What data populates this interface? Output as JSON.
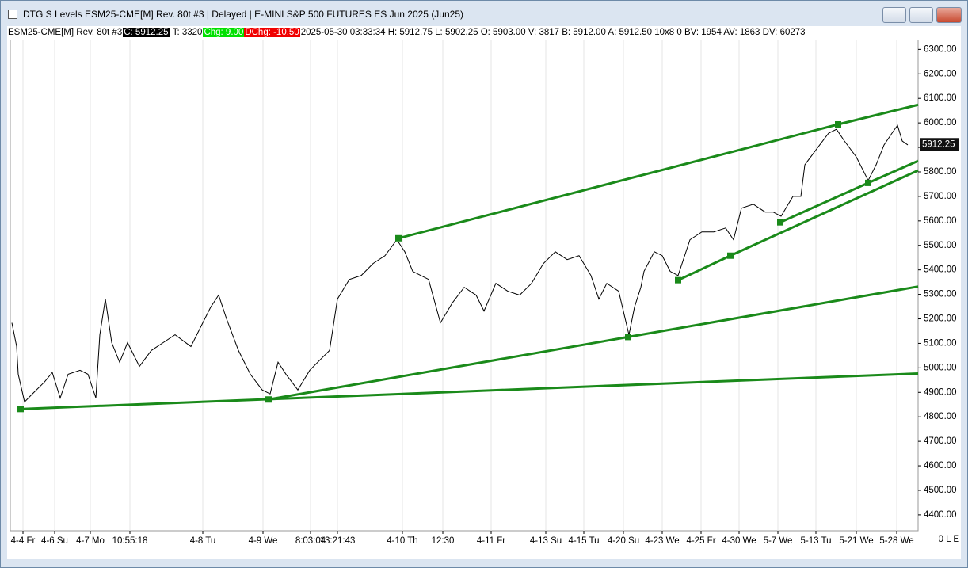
{
  "window": {
    "title": "DTG S Levels ESM25-CME[M]  Rev. 80t #3 | Delayed | E-MINI S&P 500 FUTURES ES Jun 2025 (Jun25)"
  },
  "info_bar": {
    "symbol": "ESM25-CME[M]  Rev. 80t #3",
    "close": "C: 5912.25",
    "ticks": "T: 3320",
    "change": "Chg: 9.00",
    "daily_change": "DChg: -10.50",
    "details": "2025-05-30 03:33:34 H: 5912.75 L: 5902.25 O: 5903.00 V: 3817 B: 5912.00 A: 5912.50 10x8 0 BV: 1954 AV: 1863 DV: 60273"
  },
  "status": "0 L E",
  "chart_data": {
    "type": "line",
    "xlim": [
      0,
      1146
    ],
    "ylim": [
      4335,
      6340
    ],
    "grid": true,
    "series": [
      {
        "color": "#000000",
        "x": [
          2,
          8,
          10,
          18,
          28,
          43,
          53,
          63,
          73,
          88,
          98,
          108,
          113,
          120,
          128,
          138,
          148,
          163,
          178,
          193,
          208,
          228,
          243,
          253,
          263,
          273,
          288,
          303,
          318,
          328,
          338,
          348,
          363,
          378,
          393,
          403,
          413,
          428,
          443,
          458,
          473,
          488,
          498,
          508,
          528,
          543,
          558,
          573,
          588,
          598,
          613,
          628,
          643,
          658,
          673,
          688,
          703,
          718,
          733,
          743,
          753,
          768,
          781,
          788,
          796,
          800,
          813,
          823,
          833,
          843,
          858,
          873,
          888,
          903,
          913,
          923,
          938,
          953,
          963,
          973,
          988,
          998,
          1003,
          1018,
          1033,
          1043,
          1053,
          1068,
          1083,
          1093,
          1103,
          1113,
          1120,
          1126,
          1133
        ],
        "values": [
          5184,
          5087,
          4974,
          4861,
          4894,
          4942,
          4981,
          4877,
          4974,
          4990,
          4974,
          4877,
          5135,
          5281,
          5103,
          5023,
          5103,
          5006,
          5071,
          5103,
          5135,
          5087,
          5184,
          5248,
          5297,
          5200,
          5071,
          4974,
          4910,
          4894,
          5023,
          4974,
          4910,
          4990,
          5039,
          5071,
          5281,
          5361,
          5377,
          5426,
          5458,
          5523,
          5474,
          5394,
          5361,
          5184,
          5265,
          5329,
          5297,
          5232,
          5345,
          5313,
          5297,
          5345,
          5426,
          5474,
          5442,
          5458,
          5377,
          5281,
          5345,
          5313,
          5135,
          5248,
          5329,
          5394,
          5474,
          5458,
          5394,
          5377,
          5523,
          5555,
          5555,
          5571,
          5523,
          5652,
          5668,
          5636,
          5636,
          5619,
          5700,
          5700,
          5829,
          5894,
          5958,
          5974,
          5926,
          5861,
          5765,
          5829,
          5910,
          5958,
          5990,
          5926,
          5910
        ]
      }
    ],
    "trendlines": [
      {
        "color": "#1a8a1a",
        "x": [
          13,
          1146
        ],
        "values": [
          4832,
          4977
        ]
      },
      {
        "color": "#1a8a1a",
        "x": [
          326,
          780,
          1146
        ],
        "values": [
          4871,
          5126,
          5332
        ]
      },
      {
        "color": "#1a8a1a",
        "x": [
          490,
          1045,
          1146
        ],
        "values": [
          5529,
          5994,
          6074
        ]
      },
      {
        "color": "#1a8a1a",
        "x": [
          843,
          909,
          1146
        ],
        "values": [
          5358,
          5458,
          5806
        ]
      },
      {
        "color": "#1a8a1a",
        "x": [
          972,
          1083,
          1146
        ],
        "values": [
          5594,
          5755,
          5845
        ]
      }
    ],
    "last_price": {
      "value": 5912.25,
      "label": "5912.25"
    },
    "yticks": [
      {
        "value": 4400,
        "label": "4400.00"
      },
      {
        "value": 4500,
        "label": "4500.00"
      },
      {
        "value": 4600,
        "label": "4600.00"
      },
      {
        "value": 4700,
        "label": "4700.00"
      },
      {
        "value": 4800,
        "label": "4800.00"
      },
      {
        "value": 4900,
        "label": "4900.00"
      },
      {
        "value": 5000,
        "label": "5000.00"
      },
      {
        "value": 5100,
        "label": "5100.00"
      },
      {
        "value": 5200,
        "label": "5200.00"
      },
      {
        "value": 5300,
        "label": "5300.00"
      },
      {
        "value": 5400,
        "label": "5400.00"
      },
      {
        "value": 5500,
        "label": "5500.00"
      },
      {
        "value": 5600,
        "label": "5600.00"
      },
      {
        "value": 5700,
        "label": "5700.00"
      },
      {
        "value": 5800,
        "label": "5800.00"
      },
      {
        "value": 5900,
        "label": "5900.00"
      },
      {
        "value": 6000,
        "label": "6000.00"
      },
      {
        "value": 6100,
        "label": "6100.00"
      },
      {
        "value": 6200,
        "label": "6200.00"
      },
      {
        "value": 6300,
        "label": "6300.00"
      }
    ],
    "xticks": [
      {
        "value": 16,
        "label": "4-4 Fr"
      },
      {
        "value": 56,
        "label": "4-6 Su"
      },
      {
        "value": 101,
        "label": "4-7 Mo"
      },
      {
        "value": 151,
        "label": "10:55:18"
      },
      {
        "value": 243,
        "label": "4-8 Tu"
      },
      {
        "value": 319,
        "label": "4-9 We"
      },
      {
        "value": 379,
        "label": "8:03:04"
      },
      {
        "value": 413,
        "label": "13:21:43"
      },
      {
        "value": 495,
        "label": "4-10 Th"
      },
      {
        "value": 546,
        "label": "12:30"
      },
      {
        "value": 607,
        "label": "4-11 Fr"
      },
      {
        "value": 676,
        "label": "4-13 Su"
      },
      {
        "value": 724,
        "label": "4-15 Tu"
      },
      {
        "value": 774,
        "label": "4-20 Su"
      },
      {
        "value": 823,
        "label": "4-23 We"
      },
      {
        "value": 872,
        "label": "4-25 Fr"
      },
      {
        "value": 920,
        "label": "4-30 We"
      },
      {
        "value": 969,
        "label": "5-7 We"
      },
      {
        "value": 1017,
        "label": "5-13 Tu"
      },
      {
        "value": 1068,
        "label": "5-21 We"
      },
      {
        "value": 1119,
        "label": "5-28 We"
      }
    ]
  }
}
